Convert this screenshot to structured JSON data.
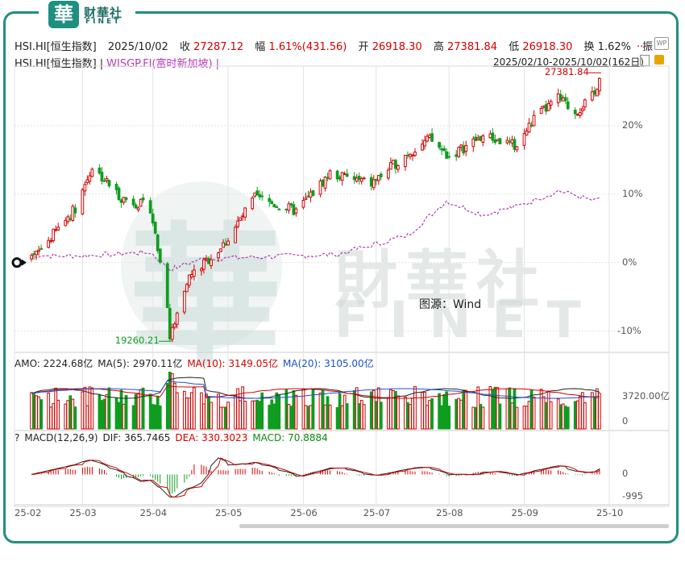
{
  "brand": {
    "seal_char": "華",
    "name_cn": "财華社",
    "name_en": "FINET"
  },
  "watermark": {
    "cn": "財華社",
    "en": "FINET",
    "big_char": "華"
  },
  "header": {
    "code": "HSI.HI[恒生指数]",
    "date": "2025/10/02",
    "close_label": "收",
    "close": "27287.12",
    "change_label": "幅",
    "change": "1.61%(431.56)",
    "open_label": "开",
    "open": "26918.30",
    "high_label": "高",
    "high": "27381.84",
    "low_label": "低",
    "low": "26918.30",
    "turnover_label": "换",
    "turnover": "1.62%",
    "amp_label": "振",
    "more": "...",
    "wp_icon": "WP"
  },
  "legend": {
    "main": "HSI.HI[恒生指数]",
    "sep": "|",
    "compare": "WISGP.FI(富时新加坡)",
    "sep2": "|",
    "range": "2025/02/10-2025/10/02(162日)"
  },
  "colors": {
    "up": "#d40000",
    "down": "#0f9d1f",
    "compare": "#b33ab3",
    "ma5": "#222222",
    "ma10": "#d40000",
    "ma20": "#1b4fd8",
    "frame": "#1f8f7f"
  },
  "volume_legend": {
    "amo": "AMO: 2224.68亿",
    "ma5": "MA(5): 2970.11亿",
    "ma10": "MA(10): 3149.05亿",
    "ma20": "MA(20): 3105.00亿"
  },
  "macd_legend": {
    "q": "?",
    "name": "MACD(12,26,9)",
    "dif": "DIF: 365.7465",
    "dea": "DEA: 330.3023",
    "macd": "MACD: 70.8884"
  },
  "source_label": "图源：Wind",
  "chart_data": {
    "type": "line",
    "title": "HSI.HI[恒生指数]",
    "x_ticks": [
      "25-02",
      "25-03",
      "25-04",
      "25-05",
      "25-06",
      "25-07",
      "25-08",
      "25-09",
      "25-10"
    ],
    "price_yaxis": {
      "ticks": [
        "20%",
        "10%",
        "0%",
        "-10%"
      ],
      "values": [
        20,
        10,
        0,
        -10
      ],
      "ylim": [
        -13,
        28
      ]
    },
    "annotations": {
      "high": "27381.84",
      "low": "19260.21"
    },
    "series": [
      {
        "name": "HSI.HI[恒生指数]",
        "kind": "candlestick",
        "x": [
          "2025-02-10",
          "2025-02-28",
          "2025-03-07",
          "2025-03-19",
          "2025-03-31",
          "2025-04-07",
          "2025-04-08",
          "2025-04-15",
          "2025-04-30",
          "2025-05-13",
          "2025-05-30",
          "2025-06-13",
          "2025-06-30",
          "2025-07-15",
          "2025-07-24",
          "2025-08-01",
          "2025-08-15",
          "2025-08-29",
          "2025-09-05",
          "2025-09-15",
          "2025-09-22",
          "2025-09-30",
          "2025-10-02"
        ],
        "values": [
          0.3,
          8.0,
          14.0,
          9.5,
          8.0,
          -6.0,
          -11.0,
          -2.5,
          2.5,
          9.5,
          7.5,
          13.0,
          11.5,
          16.0,
          18.0,
          15.5,
          18.5,
          17.0,
          21.0,
          24.0,
          22.0,
          24.5,
          27.5
        ]
      },
      {
        "name": "WISGP.FI(富时新加坡)",
        "kind": "line",
        "x": [
          "2025-02-10",
          "2025-03-03",
          "2025-03-31",
          "2025-04-08",
          "2025-04-21",
          "2025-05-15",
          "2025-06-16",
          "2025-07-15",
          "2025-07-31",
          "2025-08-15",
          "2025-09-01",
          "2025-09-15",
          "2025-09-30",
          "2025-10-02"
        ],
        "values": [
          1.0,
          1.0,
          1.5,
          -1.0,
          0.5,
          0.8,
          1.2,
          4.0,
          9.0,
          7.0,
          8.5,
          10.5,
          9.0,
          9.5
        ]
      }
    ],
    "volume": {
      "ylabel": "",
      "ticks": [
        "3720.00亿",
        "0"
      ],
      "values": [
        3720,
        0
      ]
    },
    "macd": {
      "ticks": [
        "0",
        "-995"
      ],
      "values": [
        0,
        -995
      ]
    }
  }
}
